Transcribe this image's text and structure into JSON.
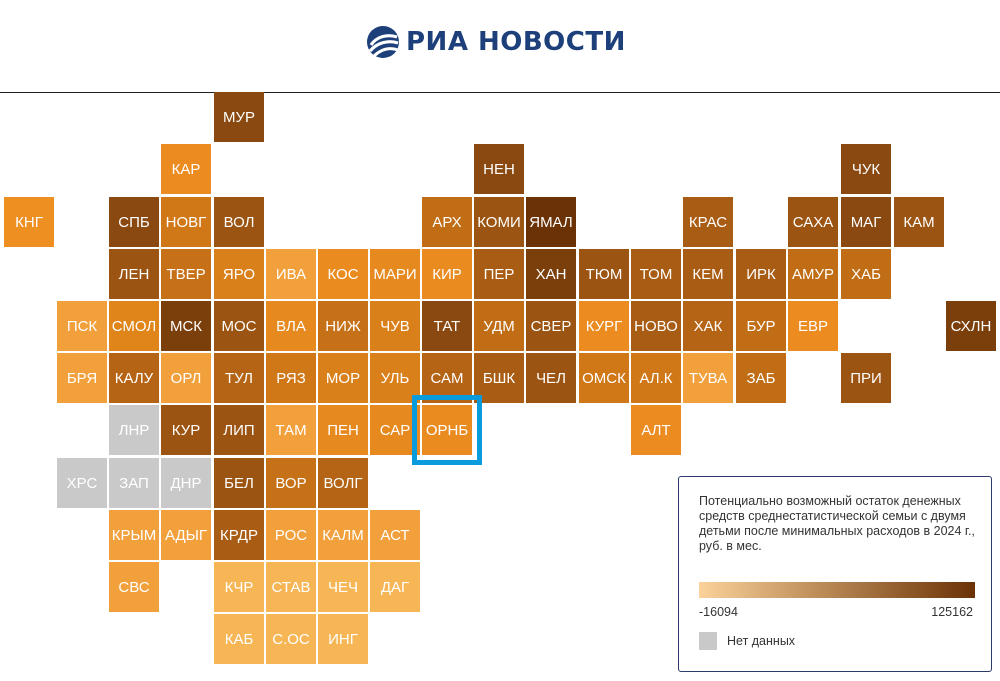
{
  "header": {
    "logo_text": "РИА НОВОСТИ",
    "brand_color": "#1d3f7a"
  },
  "legend": {
    "title": "Потенциально возможный остаток денежных средств среднестатистической семьи с двумя детьми после минимальных расходов в 2024 г., руб. в мес.",
    "min_label": "-16094",
    "max_label": "125162",
    "min_value": -16094,
    "max_value": 125162,
    "gradient_start": "#fbd29a",
    "gradient_end": "#6b3205",
    "no_data_label": "Нет данных",
    "no_data_color": "#c9c9c9"
  },
  "highlighted_region": "ОРНБ",
  "regions": [
    {
      "label": "МУР",
      "color": "#8a4910"
    },
    {
      "label": "КАР",
      "color": "#ec8c20"
    },
    {
      "label": "НЕН",
      "color": "#8a4910"
    },
    {
      "label": "ЧУК",
      "color": "#8a4910"
    },
    {
      "label": "КНГ",
      "color": "#ee8f22"
    },
    {
      "label": "СПБ",
      "color": "#8a4910"
    },
    {
      "label": "НОВГ",
      "color": "#d07818"
    },
    {
      "label": "ВОЛ",
      "color": "#9b5411"
    },
    {
      "label": "АРХ",
      "color": "#c06d15"
    },
    {
      "label": "КОМИ",
      "color": "#9b5411"
    },
    {
      "label": "ЯМАЛ",
      "color": "#6b3205"
    },
    {
      "label": "КРАС",
      "color": "#a95c13"
    },
    {
      "label": "САХА",
      "color": "#9b5411"
    },
    {
      "label": "МАГ",
      "color": "#8a4910"
    },
    {
      "label": "КАМ",
      "color": "#9b5411"
    },
    {
      "label": "ЛЕН",
      "color": "#9b5411"
    },
    {
      "label": "ТВЕР",
      "color": "#c67117"
    },
    {
      "label": "ЯРО",
      "color": "#d9801b"
    },
    {
      "label": "ИВА",
      "color": "#f2a03c"
    },
    {
      "label": "КОС",
      "color": "#ea8b20"
    },
    {
      "label": "МАРИ",
      "color": "#e6891f"
    },
    {
      "label": "КИР",
      "color": "#ea8b20"
    },
    {
      "label": "ПЕР",
      "color": "#a95c13"
    },
    {
      "label": "ХАН",
      "color": "#7a3f0b"
    },
    {
      "label": "ТЮМ",
      "color": "#9b5411"
    },
    {
      "label": "ТОМ",
      "color": "#a95c13"
    },
    {
      "label": "КЕМ",
      "color": "#a95c13"
    },
    {
      "label": "ИРК",
      "color": "#a95c13"
    },
    {
      "label": "АМУР",
      "color": "#c06d15"
    },
    {
      "label": "ХАБ",
      "color": "#c06d15"
    },
    {
      "label": "ПСК",
      "color": "#f2a03c"
    },
    {
      "label": "СМОЛ",
      "color": "#e08519"
    },
    {
      "label": "МСК",
      "color": "#7a3f0b"
    },
    {
      "label": "МОС",
      "color": "#9b5411"
    },
    {
      "label": "ВЛА",
      "color": "#e6891f"
    },
    {
      "label": "НИЖ",
      "color": "#c67117"
    },
    {
      "label": "ЧУВ",
      "color": "#d9801b"
    },
    {
      "label": "ТАТ",
      "color": "#8a4910"
    },
    {
      "label": "УДМ",
      "color": "#c06d15"
    },
    {
      "label": "СВЕР",
      "color": "#9b5411"
    },
    {
      "label": "КУРГ",
      "color": "#ec8c20"
    },
    {
      "label": "НОВО",
      "color": "#a95c13"
    },
    {
      "label": "ХАК",
      "color": "#b46414"
    },
    {
      "label": "БУР",
      "color": "#c06d15"
    },
    {
      "label": "ЕВР",
      "color": "#ec8c20"
    },
    {
      "label": "СХЛН",
      "color": "#7a3f0b"
    },
    {
      "label": "БРЯ",
      "color": "#f2a03c"
    },
    {
      "label": "КАЛУ",
      "color": "#b46414"
    },
    {
      "label": "ОРЛ",
      "color": "#f2a03c"
    },
    {
      "label": "ТУЛ",
      "color": "#b46414"
    },
    {
      "label": "РЯЗ",
      "color": "#d07818"
    },
    {
      "label": "МОР",
      "color": "#d9801b"
    },
    {
      "label": "УЛЬ",
      "color": "#d9801b"
    },
    {
      "label": "САМ",
      "color": "#b46414"
    },
    {
      "label": "БШК",
      "color": "#a95c13"
    },
    {
      "label": "ЧЕЛ",
      "color": "#9b5411"
    },
    {
      "label": "ОМСК",
      "color": "#d07818"
    },
    {
      "label": "АЛ.К",
      "color": "#d07818"
    },
    {
      "label": "ТУВА",
      "color": "#f2a03c"
    },
    {
      "label": "ЗАБ",
      "color": "#c06d15"
    },
    {
      "label": "ПРИ",
      "color": "#9b5411"
    },
    {
      "label": "ЛНР",
      "color": "#c9c9c9"
    },
    {
      "label": "КУР",
      "color": "#9b5411"
    },
    {
      "label": "ЛИП",
      "color": "#9b5411"
    },
    {
      "label": "ТАМ",
      "color": "#f2a03c"
    },
    {
      "label": "ПЕН",
      "color": "#e6891f"
    },
    {
      "label": "САР",
      "color": "#e6891f"
    },
    {
      "label": "ОРНБ",
      "color": "#ea8b20"
    },
    {
      "label": "АЛТ",
      "color": "#ec8c20"
    },
    {
      "label": "ХРС",
      "color": "#c9c9c9"
    },
    {
      "label": "ЗАП",
      "color": "#c9c9c9"
    },
    {
      "label": "ДНР",
      "color": "#c9c9c9"
    },
    {
      "label": "БЕЛ",
      "color": "#9b5411"
    },
    {
      "label": "ВОР",
      "color": "#c67117"
    },
    {
      "label": "ВОЛГ",
      "color": "#b46414"
    },
    {
      "label": "КРЫМ",
      "color": "#f2a03c"
    },
    {
      "label": "АДЫГ",
      "color": "#f2a03c"
    },
    {
      "label": "КРДР",
      "color": "#a95c13"
    },
    {
      "label": "РОС",
      "color": "#f2a03c"
    },
    {
      "label": "КАЛМ",
      "color": "#f2a03c"
    },
    {
      "label": "АСТ",
      "color": "#f2a03c"
    },
    {
      "label": "СВС",
      "color": "#f2a03c"
    },
    {
      "label": "КЧР",
      "color": "#f7b656"
    },
    {
      "label": "СТАВ",
      "color": "#f7b656"
    },
    {
      "label": "ЧЕЧ",
      "color": "#f7b656"
    },
    {
      "label": "ДАГ",
      "color": "#f7b656"
    },
    {
      "label": "КАБ",
      "color": "#f7b656"
    },
    {
      "label": "С.ОС",
      "color": "#f7b656"
    },
    {
      "label": "ИНГ",
      "color": "#f7b656"
    }
  ]
}
